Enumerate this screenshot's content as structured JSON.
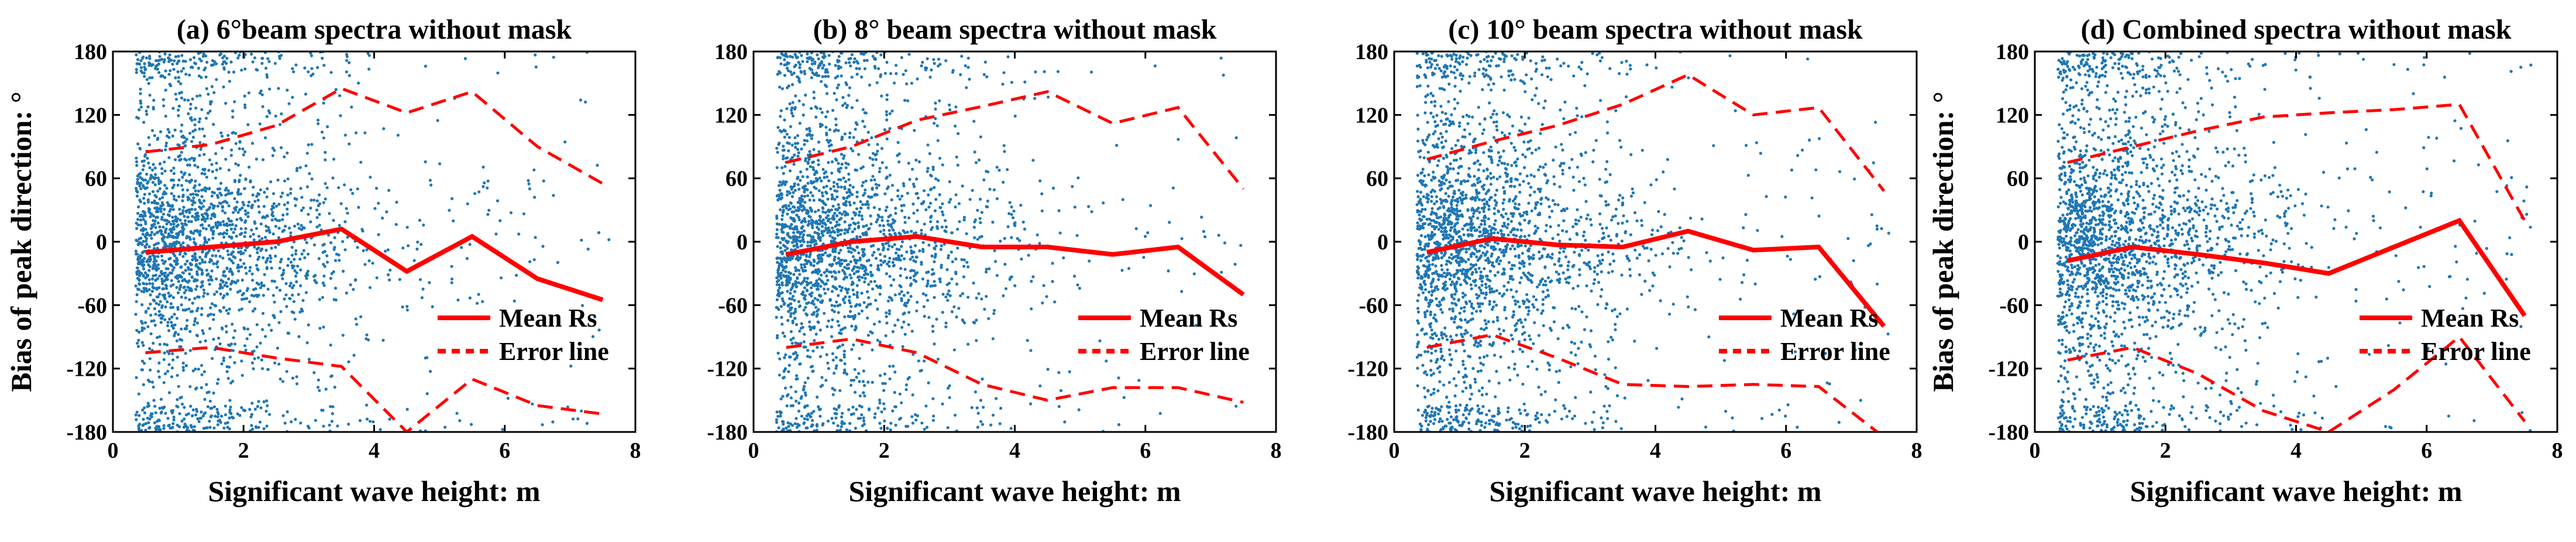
{
  "figure": {
    "colors": {
      "scatter": "#1f77b4",
      "mean_line": "#ff0000",
      "error_line": "#ff0000",
      "axis": "#000000"
    }
  },
  "chart_data": [
    {
      "type": "scatter",
      "title": "(a) 6°beam spectra without mask",
      "xlabel": "Significant wave height: m",
      "ylabel": "Bias of peak direction: °",
      "xlim": [
        0,
        8
      ],
      "ylim": [
        -180,
        180
      ],
      "xticks": [
        0,
        2,
        4,
        6,
        8
      ],
      "yticks": [
        180,
        120,
        60,
        0,
        -60,
        -120,
        -180
      ],
      "grid": false,
      "legend": {
        "position": "bottom-right",
        "entries": [
          "Mean Rs",
          "Error line"
        ]
      },
      "series": [
        {
          "name": "Mean Rs",
          "style": "solid",
          "x": [
            0.5,
            1.5,
            2.5,
            3.5,
            4.5,
            5.5,
            6.5,
            7.5
          ],
          "y": [
            -10,
            -5,
            0,
            12,
            -28,
            5,
            -35,
            -55
          ]
        },
        {
          "name": "Error line",
          "style": "dashed",
          "x": [
            0.5,
            1.5,
            2.5,
            3.5,
            4.5,
            5.5,
            6.5,
            7.5
          ],
          "y": [
            85,
            92,
            110,
            145,
            122,
            142,
            90,
            55
          ]
        },
        {
          "name": "Error line",
          "style": "dashed",
          "x": [
            0.5,
            1.5,
            2.5,
            3.5,
            4.5,
            5.5,
            6.5,
            7.5
          ],
          "y": [
            -105,
            -100,
            -110,
            -118,
            -180,
            -130,
            -155,
            -163
          ]
        }
      ]
    },
    {
      "type": "scatter",
      "title": "(b) 8° beam spectra without mask",
      "xlabel": "Significant wave height: m",
      "ylabel": "",
      "xlim": [
        0,
        8
      ],
      "ylim": [
        -180,
        180
      ],
      "xticks": [
        0,
        2,
        4,
        6,
        8
      ],
      "yticks": [
        180,
        120,
        60,
        0,
        -60,
        -120,
        -180
      ],
      "grid": false,
      "legend": {
        "position": "bottom-right",
        "entries": [
          "Mean Rs",
          "Error line"
        ]
      },
      "series": [
        {
          "name": "Mean Rs",
          "style": "solid",
          "x": [
            0.5,
            1.5,
            2.5,
            3.5,
            4.5,
            5.5,
            6.5,
            7.5
          ],
          "y": [
            -12,
            0,
            5,
            -5,
            -5,
            -12,
            -5,
            -50
          ]
        },
        {
          "name": "Error line",
          "style": "dashed",
          "x": [
            0.5,
            1.5,
            2.5,
            3.5,
            4.5,
            5.5,
            6.5,
            7.5
          ],
          "y": [
            75,
            90,
            115,
            128,
            142,
            112,
            127,
            50
          ]
        },
        {
          "name": "Error line",
          "style": "dashed",
          "x": [
            0.5,
            1.5,
            2.5,
            3.5,
            4.5,
            5.5,
            6.5,
            7.5
          ],
          "y": [
            -100,
            -92,
            -105,
            -135,
            -150,
            -138,
            -138,
            -152
          ]
        }
      ]
    },
    {
      "type": "scatter",
      "title": "(c) 10° beam spectra without mask",
      "xlabel": "Significant wave height: m",
      "ylabel": "",
      "xlim": [
        0,
        8
      ],
      "ylim": [
        -180,
        180
      ],
      "xticks": [
        0,
        2,
        4,
        6,
        8
      ],
      "yticks": [
        180,
        120,
        60,
        0,
        -60,
        -120,
        -180
      ],
      "grid": false,
      "legend": {
        "position": "bottom-right",
        "entries": [
          "Mean Rs",
          "Error line"
        ]
      },
      "series": [
        {
          "name": "Mean Rs",
          "style": "solid",
          "x": [
            0.5,
            1.5,
            2.5,
            3.5,
            4.5,
            5.5,
            6.5,
            7.5
          ],
          "y": [
            -10,
            3,
            -3,
            -5,
            10,
            -8,
            -5,
            -80
          ]
        },
        {
          "name": "Error line",
          "style": "dashed",
          "x": [
            0.5,
            1.5,
            2.5,
            3.5,
            4.5,
            5.5,
            6.5,
            7.5
          ],
          "y": [
            78,
            95,
            110,
            130,
            158,
            120,
            127,
            48
          ]
        },
        {
          "name": "Error line",
          "style": "dashed",
          "x": [
            0.5,
            1.5,
            2.5,
            3.5,
            4.5,
            5.5,
            6.5,
            7.5
          ],
          "y": [
            -100,
            -88,
            -110,
            -135,
            -137,
            -135,
            -137,
            -185
          ]
        }
      ]
    },
    {
      "type": "scatter",
      "title": "(d) Combined spectra without mask",
      "xlabel": "Significant wave height: m",
      "ylabel": "Bias of peak direction: °",
      "xlim": [
        0,
        8
      ],
      "ylim": [
        -180,
        180
      ],
      "xticks": [
        0,
        2,
        4,
        6,
        8
      ],
      "yticks": [
        180,
        120,
        60,
        0,
        -60,
        -120,
        -180
      ],
      "grid": false,
      "legend": {
        "position": "bottom-right",
        "entries": [
          "Mean Rs",
          "Error line"
        ]
      },
      "series": [
        {
          "name": "Mean Rs",
          "style": "solid",
          "x": [
            0.5,
            1.5,
            2.5,
            3.5,
            4.5,
            5.5,
            6.5,
            7.5
          ],
          "y": [
            -18,
            -5,
            -12,
            -20,
            -30,
            -5,
            20,
            -70
          ]
        },
        {
          "name": "Error line",
          "style": "dashed",
          "x": [
            0.5,
            1.5,
            2.5,
            3.5,
            4.5,
            5.5,
            6.5,
            7.5
          ],
          "y": [
            75,
            90,
            105,
            118,
            122,
            125,
            130,
            20
          ]
        },
        {
          "name": "Error line",
          "style": "dashed",
          "x": [
            0.5,
            1.5,
            2.5,
            3.5,
            4.5,
            5.5,
            6.5,
            7.5
          ],
          "y": [
            -112,
            -100,
            -125,
            -160,
            -180,
            -140,
            -90,
            -170
          ]
        }
      ]
    }
  ]
}
